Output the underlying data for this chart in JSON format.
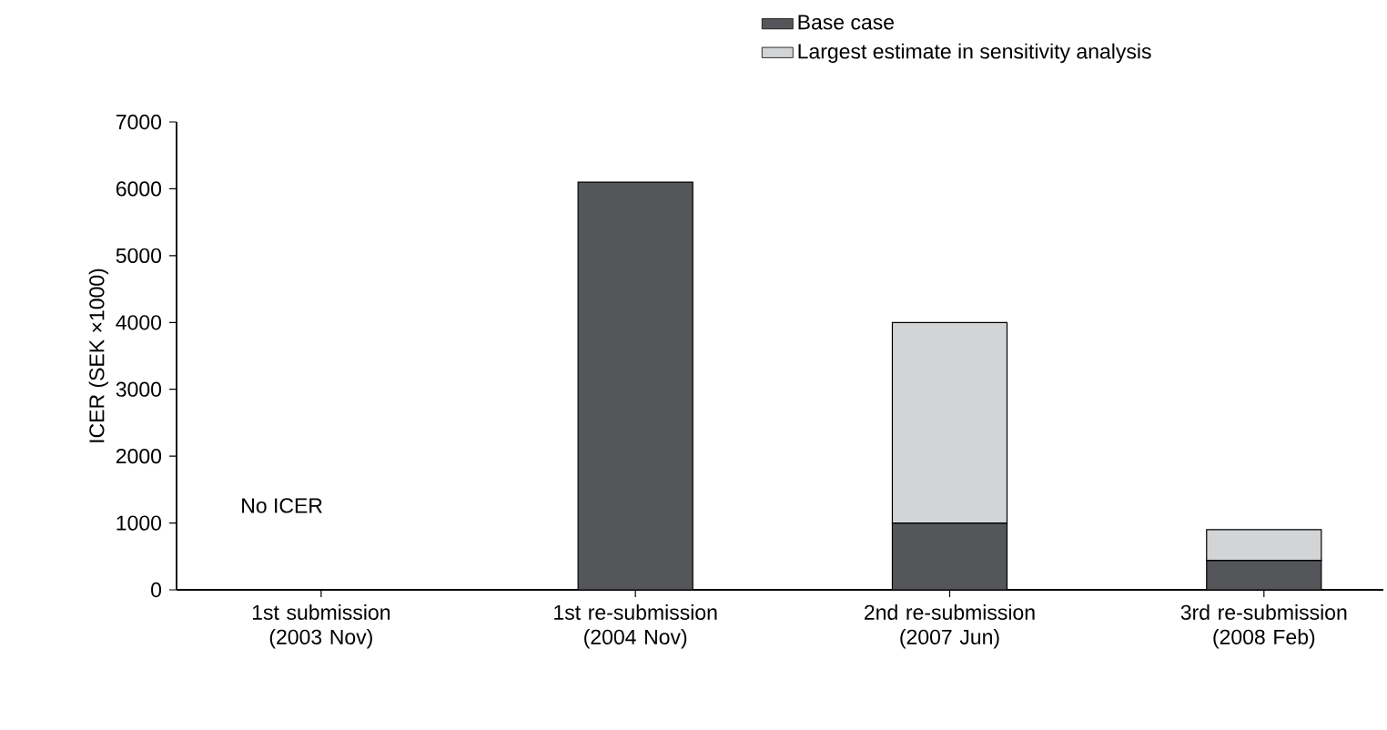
{
  "chart_data": {
    "type": "bar",
    "stacked": true,
    "ylabel": "ICER (SEK ×1000)",
    "categories": [
      "1st submission (2003 Nov)",
      "1st re-submission (2004 Nov)",
      "2nd re-submission (2007 Jun)",
      "3rd re-submission (2008 Feb)"
    ],
    "series": [
      {
        "name": "Base case",
        "color": "#555659",
        "values": [
          null,
          6100,
          1000,
          440
        ]
      },
      {
        "name": "Largest estimate in sensitivity analysis",
        "color": "#d3d4d6",
        "values": [
          null,
          null,
          3000,
          460
        ]
      }
    ],
    "ylim": [
      0,
      7000
    ],
    "yticks": [
      0,
      1000,
      2000,
      3000,
      4000,
      5000,
      6000,
      7000
    ],
    "annotations": [
      "No ICER"
    ],
    "legend": "top",
    "grid": false
  }
}
